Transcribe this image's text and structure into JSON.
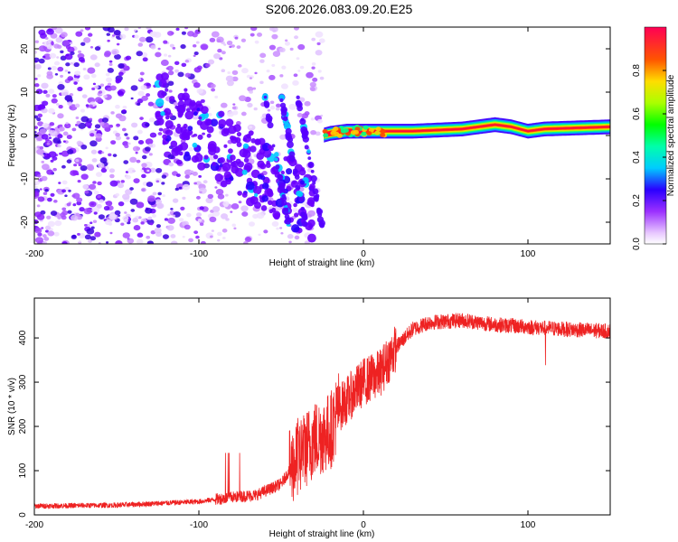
{
  "title": "S206.2026.083.09.20.E25",
  "chart_data": [
    {
      "type": "heatmap",
      "xlabel": "Height of straight line (km)",
      "ylabel": "Frequency (Hz)",
      "xlim": [
        -200,
        150
      ],
      "ylim": [
        -25,
        25
      ],
      "xticks": [
        -200,
        -100,
        0,
        100
      ],
      "yticks": [
        -20,
        -10,
        0,
        10,
        20
      ],
      "colorbar": {
        "label": "Normalized spectral amplitude",
        "range": [
          0,
          1
        ],
        "ticks": [
          "0.0",
          "0.2",
          "0.4",
          "0.6",
          "0.8"
        ],
        "tick_values": [
          0,
          0.2,
          0.4,
          0.6,
          0.8
        ]
      },
      "description_points": {
        "scatter_region_x": [
          -200,
          -25
        ],
        "band_region_x": [
          -25,
          150
        ],
        "band_center_freq": [
          [
            -25,
            0
          ],
          [
            -20,
            0.5
          ],
          [
            -10,
            1
          ],
          [
            0,
            1
          ],
          [
            10,
            1
          ],
          [
            30,
            1
          ],
          [
            60,
            1.5
          ],
          [
            80,
            2.5
          ],
          [
            90,
            2
          ],
          [
            100,
            1
          ],
          [
            110,
            1.5
          ],
          [
            150,
            2
          ]
        ]
      }
    },
    {
      "type": "line",
      "xlabel": "Height of straight line (km)",
      "ylabel": "SNR (10 * v/v)",
      "xlim": [
        -200,
        150
      ],
      "ylim": [
        0,
        490
      ],
      "xticks": [
        -200,
        -100,
        0,
        100
      ],
      "yticks": [
        0,
        100,
        200,
        300,
        400
      ],
      "color": "#ee2222",
      "envelope": [
        [
          -200,
          20
        ],
        [
          -150,
          22
        ],
        [
          -100,
          30
        ],
        [
          -80,
          40
        ],
        [
          -65,
          45
        ],
        [
          -50,
          70
        ],
        [
          -40,
          130
        ],
        [
          -30,
          170
        ],
        [
          -20,
          190
        ],
        [
          -15,
          240
        ],
        [
          -10,
          260
        ],
        [
          0,
          300
        ],
        [
          10,
          320
        ],
        [
          20,
          380
        ],
        [
          30,
          420
        ],
        [
          40,
          435
        ],
        [
          60,
          440
        ],
        [
          80,
          430
        ],
        [
          100,
          425
        ],
        [
          120,
          420
        ],
        [
          150,
          415
        ]
      ]
    }
  ]
}
